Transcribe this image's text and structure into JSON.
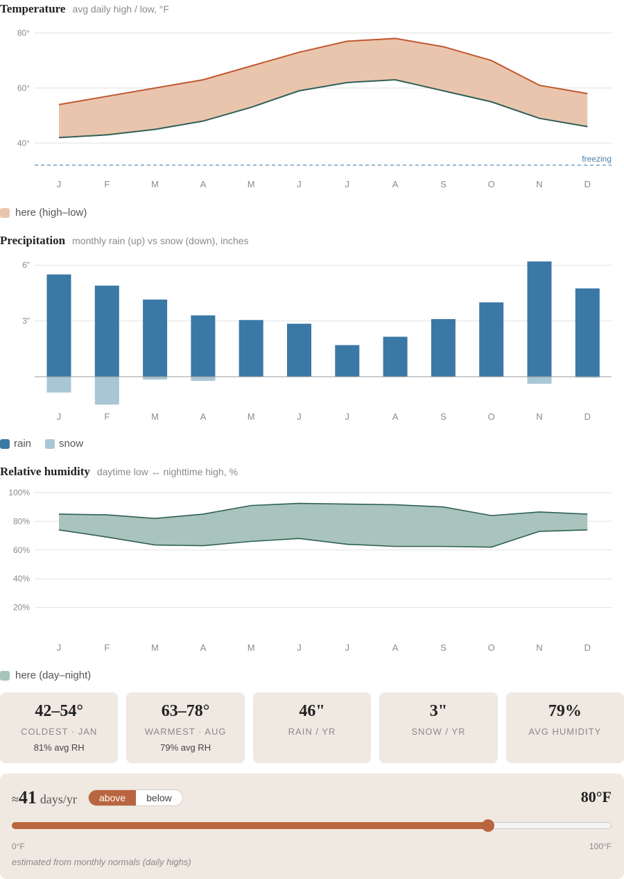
{
  "months": [
    "J",
    "F",
    "M",
    "A",
    "M",
    "J",
    "J",
    "A",
    "S",
    "O",
    "N",
    "D"
  ],
  "temperature": {
    "title": "Temperature",
    "subtitle": "avg daily high / low, °F",
    "yticks": [
      "80°",
      "60°",
      "40°"
    ],
    "freezing_label": "freezing",
    "legend": "here (high–low)",
    "colors": {
      "fill": "#eac5ad",
      "high": "#c0582f",
      "low": "#2f5f55",
      "freeze": "#4a7fa8"
    }
  },
  "precipitation": {
    "title": "Precipitation",
    "subtitle": "monthly rain (up) vs snow (down), inches",
    "yticks": [
      "6\"",
      "3\""
    ],
    "legend_rain": "rain",
    "legend_snow": "snow",
    "colors": {
      "rain": "#3a78a6",
      "snow": "#a8c6d6"
    }
  },
  "humidity": {
    "title": "Relative humidity",
    "subtitle": "daytime low ↔ nighttime high, %",
    "yticks": [
      "100%",
      "80%",
      "60%",
      "40%",
      "20%"
    ],
    "legend": "here (day–night)",
    "colors": {
      "fill": "#a8c4bd",
      "line": "#2f5f55"
    }
  },
  "chart_data": [
    {
      "type": "area",
      "title": "Temperature",
      "categories": [
        "J",
        "F",
        "M",
        "A",
        "M",
        "J",
        "J",
        "A",
        "S",
        "O",
        "N",
        "D"
      ],
      "series": [
        {
          "name": "high",
          "values": [
            54,
            57,
            60,
            63,
            68,
            73,
            77,
            78,
            75,
            70,
            61,
            58
          ]
        },
        {
          "name": "low",
          "values": [
            42,
            43,
            45,
            48,
            53,
            59,
            62,
            63,
            59,
            55,
            49,
            46
          ]
        }
      ],
      "reference_line": 32,
      "ylim": [
        25,
        82
      ]
    },
    {
      "type": "bar",
      "title": "Precipitation",
      "categories": [
        "J",
        "F",
        "M",
        "A",
        "M",
        "J",
        "J",
        "A",
        "S",
        "O",
        "N",
        "D"
      ],
      "series": [
        {
          "name": "rain",
          "values": [
            5.5,
            4.9,
            4.15,
            3.3,
            3.05,
            2.85,
            1.7,
            2.15,
            3.1,
            4.0,
            6.2,
            4.75
          ]
        },
        {
          "name": "snow",
          "values": [
            0.85,
            1.5,
            0.15,
            0.22,
            0,
            0,
            0,
            0,
            0,
            0,
            0.38,
            0.05
          ]
        }
      ],
      "ylim": [
        -1.5,
        6
      ]
    },
    {
      "type": "area",
      "title": "Relative humidity",
      "categories": [
        "J",
        "F",
        "M",
        "A",
        "M",
        "J",
        "J",
        "A",
        "S",
        "O",
        "N",
        "D"
      ],
      "series": [
        {
          "name": "night high",
          "values": [
            85,
            84.5,
            82,
            85,
            91,
            92.5,
            92,
            91.5,
            90,
            84,
            86.5,
            85
          ]
        },
        {
          "name": "day low",
          "values": [
            74,
            69,
            63.5,
            63,
            66,
            68,
            64,
            62.5,
            62.5,
            62,
            73,
            74
          ]
        }
      ],
      "ylim": [
        10,
        100
      ]
    }
  ],
  "cards": [
    {
      "value": "42–54°",
      "label": "COLDEST · JAN",
      "note": "81% avg RH"
    },
    {
      "value": "63–78°",
      "label": "WARMEST · AUG",
      "note": "79% avg RH"
    },
    {
      "value": "46\"",
      "label": "RAIN / YR",
      "note": ""
    },
    {
      "value": "3\"",
      "label": "SNOW / YR",
      "note": ""
    },
    {
      "value": "79%",
      "label": "AVG HUMIDITY",
      "note": ""
    }
  ],
  "threshold": {
    "approx": "≈",
    "days": "41",
    "unit": "days/yr",
    "above_label": "above",
    "below_label": "below",
    "value_label": "80°F",
    "slider_value": 80,
    "slider_min": 0,
    "slider_max": 100,
    "min_label": "0°F",
    "max_label": "100°F",
    "footnote": "estimated from monthly normals (daily highs)",
    "accent": "#b9653f"
  }
}
